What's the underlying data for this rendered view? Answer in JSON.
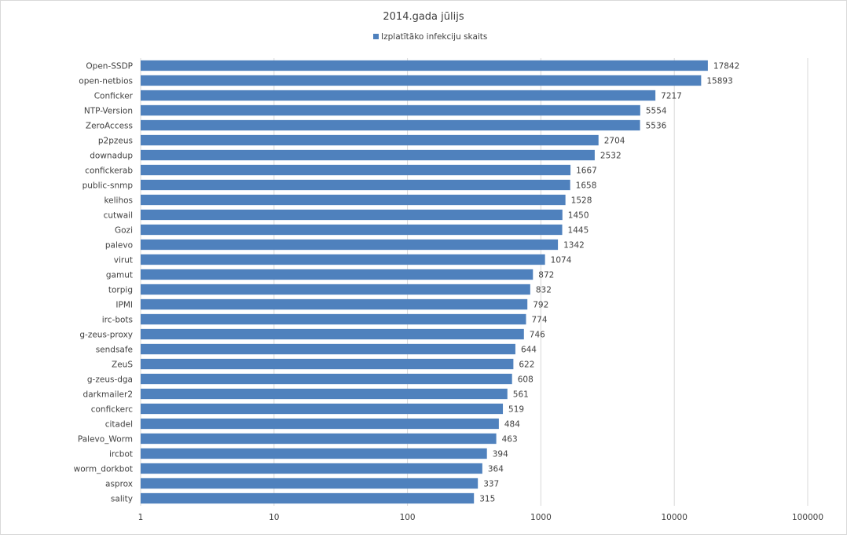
{
  "chart_data": {
    "type": "bar",
    "orientation": "horizontal",
    "title": "2014.gada jūlijs",
    "legend_position": "top",
    "xscale": "log",
    "xlim": [
      1,
      100000
    ],
    "xticks": [
      "1",
      "10",
      "100",
      "1000",
      "10000",
      "100000"
    ],
    "gridlines": true,
    "bar_color": "#4f81bd",
    "series": [
      {
        "name": "Izplatītāko infekciju skaits",
        "categories": [
          "Open-SSDP",
          "open-netbios",
          "Conficker",
          "NTP-Version",
          "ZeroAccess",
          "p2pzeus",
          "downadup",
          "confickerab",
          "public-snmp",
          "kelihos",
          "cutwail",
          "Gozi",
          "palevo",
          "virut",
          "gamut",
          "torpig",
          "IPMI",
          "irc-bots",
          "g-zeus-proxy",
          "sendsafe",
          "ZeuS",
          "g-zeus-dga",
          "darkmailer2",
          "confickerc",
          "citadel",
          "Palevo_Worm",
          "ircbot",
          "worm_dorkbot",
          "asprox",
          "sality"
        ],
        "values": [
          17842,
          15893,
          7217,
          5554,
          5536,
          2704,
          2532,
          1667,
          1658,
          1528,
          1450,
          1445,
          1342,
          1074,
          872,
          832,
          792,
          774,
          746,
          644,
          622,
          608,
          561,
          519,
          484,
          463,
          394,
          364,
          337,
          315
        ]
      }
    ]
  }
}
